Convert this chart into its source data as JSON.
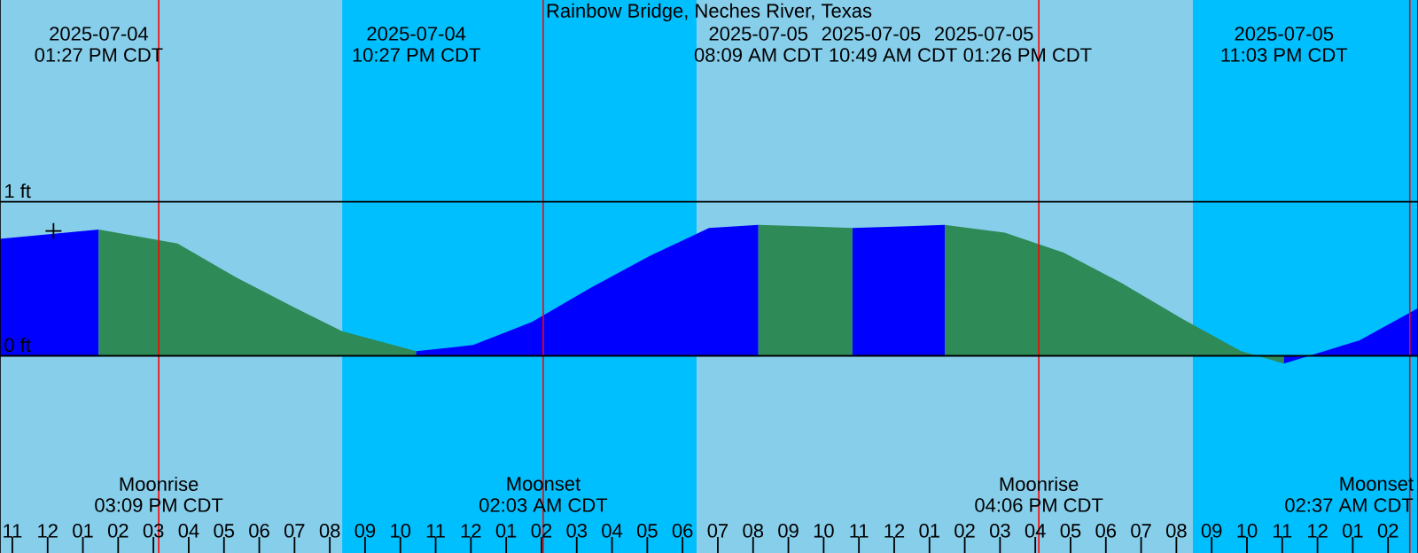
{
  "chart_data": {
    "type": "area",
    "title": "Rainbow Bridge, Neches River, Texas",
    "xlim": [
      "2025-07-04T10:39",
      "2025-07-06T02:51"
    ],
    "ylim": [
      -1.28,
      2.31
    ],
    "yticks": [
      {
        "value": 1,
        "label": "1 ft"
      },
      {
        "value": 0,
        "label": "0 ft"
      }
    ],
    "xticks": [
      {
        "value": "2025-07-04T11:00",
        "label": "11"
      },
      {
        "value": "2025-07-04T12:00",
        "label": "12"
      },
      {
        "value": "2025-07-04T13:00",
        "label": "01"
      },
      {
        "value": "2025-07-04T14:00",
        "label": "02"
      },
      {
        "value": "2025-07-04T15:00",
        "label": "03"
      },
      {
        "value": "2025-07-04T16:00",
        "label": "04"
      },
      {
        "value": "2025-07-04T17:00",
        "label": "05"
      },
      {
        "value": "2025-07-04T18:00",
        "label": "06"
      },
      {
        "value": "2025-07-04T19:00",
        "label": "07"
      },
      {
        "value": "2025-07-04T20:00",
        "label": "08"
      },
      {
        "value": "2025-07-04T21:00",
        "label": "09"
      },
      {
        "value": "2025-07-04T22:00",
        "label": "10"
      },
      {
        "value": "2025-07-04T23:00",
        "label": "11"
      },
      {
        "value": "2025-07-05T00:00",
        "label": "12"
      },
      {
        "value": "2025-07-05T01:00",
        "label": "01"
      },
      {
        "value": "2025-07-05T02:00",
        "label": "02"
      },
      {
        "value": "2025-07-05T03:00",
        "label": "03"
      },
      {
        "value": "2025-07-05T04:00",
        "label": "04"
      },
      {
        "value": "2025-07-05T05:00",
        "label": "05"
      },
      {
        "value": "2025-07-05T06:00",
        "label": "06"
      },
      {
        "value": "2025-07-05T07:00",
        "label": "07"
      },
      {
        "value": "2025-07-05T08:00",
        "label": "08"
      },
      {
        "value": "2025-07-05T09:00",
        "label": "09"
      },
      {
        "value": "2025-07-05T10:00",
        "label": "10"
      },
      {
        "value": "2025-07-05T11:00",
        "label": "11"
      },
      {
        "value": "2025-07-05T12:00",
        "label": "12"
      },
      {
        "value": "2025-07-05T13:00",
        "label": "01"
      },
      {
        "value": "2025-07-05T14:00",
        "label": "02"
      },
      {
        "value": "2025-07-05T15:00",
        "label": "03"
      },
      {
        "value": "2025-07-05T16:00",
        "label": "04"
      },
      {
        "value": "2025-07-05T17:00",
        "label": "05"
      },
      {
        "value": "2025-07-05T18:00",
        "label": "06"
      },
      {
        "value": "2025-07-05T19:00",
        "label": "07"
      },
      {
        "value": "2025-07-05T20:00",
        "label": "08"
      },
      {
        "value": "2025-07-05T21:00",
        "label": "09"
      },
      {
        "value": "2025-07-05T22:00",
        "label": "10"
      },
      {
        "value": "2025-07-05T23:00",
        "label": "11"
      },
      {
        "value": "2025-07-06T00:00",
        "label": "12"
      },
      {
        "value": "2025-07-06T01:00",
        "label": "01"
      },
      {
        "value": "2025-07-06T02:00",
        "label": "02"
      }
    ],
    "grid": "y",
    "bands": [
      {
        "axis": "x",
        "from": "2025-07-04T10:39",
        "to": "2025-07-04T20:21",
        "color": "#87ceeb"
      },
      {
        "axis": "x",
        "from": "2025-07-04T20:21",
        "to": "2025-07-05T06:24",
        "color": "#00bfff"
      },
      {
        "axis": "x",
        "from": "2025-07-05T06:24",
        "to": "2025-07-05T20:28",
        "color": "#87ceeb"
      },
      {
        "axis": "x",
        "from": "2025-07-05T20:28",
        "to": "2025-07-06T02:51",
        "color": "#00bfff"
      }
    ],
    "ref_lines": [
      {
        "axis": "x",
        "value": "2025-07-04T15:09",
        "label": "Moonrise",
        "color": "#ff0000"
      },
      {
        "axis": "x",
        "value": "2025-07-05T02:03",
        "label": "Moonset",
        "color": "#ff0000"
      },
      {
        "axis": "x",
        "value": "2025-07-05T16:06",
        "label": "Moonrise",
        "color": "#ff0000"
      },
      {
        "axis": "x",
        "value": "2025-07-06T02:37",
        "label": "Moonset",
        "color": "#ff0000"
      }
    ],
    "series": [
      {
        "color": "#0000ff",
        "x": [
          "2025-07-04T10:39",
          "2025-07-04T13:27"
        ],
        "values": [
          0.76,
          0.82
        ]
      },
      {
        "color": "#2e8b57",
        "x": [
          "2025-07-04T13:27",
          "2025-07-04T15:41",
          "2025-07-04T17:20",
          "2025-07-04T19:02",
          "2025-07-04T20:21",
          "2025-07-04T22:27"
        ],
        "values": [
          0.82,
          0.73,
          0.51,
          0.31,
          0.16,
          0.03
        ]
      },
      {
        "color": "#0000ff",
        "x": [
          "2025-07-04T22:27",
          "2025-07-05T00:04",
          "2025-07-05T01:44",
          "2025-07-05T03:23",
          "2025-07-05T05:05",
          "2025-07-05T06:45",
          "2025-07-05T08:09"
        ],
        "values": [
          0.03,
          0.07,
          0.22,
          0.44,
          0.65,
          0.83,
          0.85
        ]
      },
      {
        "color": "#2e8b57",
        "x": [
          "2025-07-05T08:09",
          "2025-07-05T09:36",
          "2025-07-05T10:49"
        ],
        "values": [
          0.85,
          0.84,
          0.83
        ]
      },
      {
        "color": "#0000ff",
        "x": [
          "2025-07-05T10:49",
          "2025-07-05T12:12",
          "2025-07-05T13:26"
        ],
        "values": [
          0.83,
          0.84,
          0.85
        ]
      },
      {
        "color": "#2e8b57",
        "x": [
          "2025-07-05T13:26",
          "2025-07-05T15:08",
          "2025-07-05T16:48",
          "2025-07-05T18:28",
          "2025-07-05T20:10",
          "2025-07-05T21:50",
          "2025-07-05T23:03"
        ],
        "values": [
          0.85,
          0.8,
          0.67,
          0.47,
          0.24,
          0.03,
          -0.05
        ]
      },
      {
        "color": "#0000ff",
        "x": [
          "2025-07-05T23:03",
          "2025-07-06T01:11",
          "2025-07-06T02:51"
        ],
        "values": [
          -0.05,
          0.1,
          0.31
        ]
      },
      {
        "type": "scatter",
        "marker": "cross",
        "color": "#000000",
        "x": [
          "2025-07-04T12:10"
        ],
        "values": [
          0.81
        ]
      }
    ],
    "annotations": [
      "2025-07-04",
      "01:27 PM CDT",
      "2025-07-04",
      "10:27 PM CDT",
      "2025-07-05",
      "08:09 AM CDT",
      "2025-07-05",
      "10:49 AM CDT",
      "2025-07-05",
      "01:26 PM CDT",
      "2025-07-05",
      "11:03 PM CDT",
      "03:09 PM CDT",
      "02:03 AM CDT",
      "04:06 PM CDT",
      "02:37 AM CDT"
    ]
  }
}
